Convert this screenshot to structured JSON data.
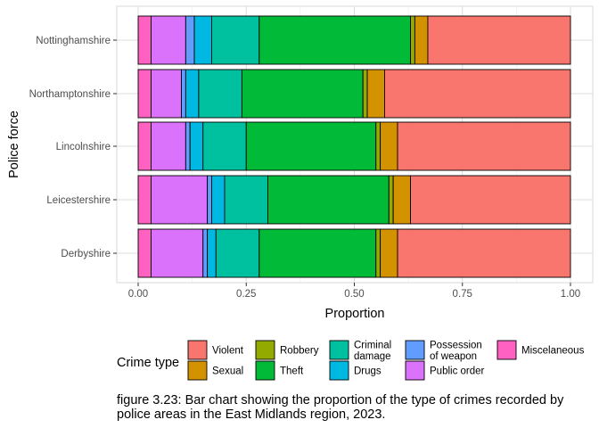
{
  "chart_data": {
    "type": "bar",
    "orientation": "horizontal",
    "stacked": true,
    "xlabel": "Proportion",
    "ylabel": "Police force",
    "xlim": [
      0,
      1
    ],
    "xticks": [
      "0.00",
      "0.25",
      "0.50",
      "0.75",
      "1.00"
    ],
    "grid": true,
    "legend_title": "Crime type",
    "legend_position": "bottom",
    "categories": [
      "Nottinghamshire",
      "Northamptonshire",
      "Lincolnshire",
      "Leicestershire",
      "Derbyshire"
    ],
    "series": [
      {
        "name": "Miscelaneous",
        "color": "#FF61C3",
        "values": [
          0.03,
          0.03,
          0.03,
          0.03,
          0.03
        ]
      },
      {
        "name": "Public order",
        "color": "#DB72FB",
        "values": [
          0.08,
          0.07,
          0.08,
          0.13,
          0.12
        ]
      },
      {
        "name": "Possession of weapon",
        "color": "#619CFF",
        "values": [
          0.02,
          0.01,
          0.01,
          0.01,
          0.01
        ]
      },
      {
        "name": "Drugs",
        "color": "#00B9E3",
        "values": [
          0.04,
          0.03,
          0.03,
          0.03,
          0.02
        ]
      },
      {
        "name": "Criminal damage",
        "color": "#00C19F",
        "values": [
          0.11,
          0.1,
          0.1,
          0.1,
          0.1
        ]
      },
      {
        "name": "Theft",
        "color": "#00BA38",
        "values": [
          0.35,
          0.28,
          0.3,
          0.28,
          0.27
        ]
      },
      {
        "name": "Robbery",
        "color": "#93AA00",
        "values": [
          0.01,
          0.01,
          0.01,
          0.01,
          0.01
        ]
      },
      {
        "name": "Sexual",
        "color": "#D39200",
        "values": [
          0.03,
          0.04,
          0.04,
          0.04,
          0.04
        ]
      },
      {
        "name": "Violent",
        "color": "#F8766D",
        "values": [
          0.33,
          0.43,
          0.4,
          0.37,
          0.4
        ]
      }
    ],
    "legend_items": [
      {
        "label": "Violent",
        "color": "#F8766D"
      },
      {
        "label": "Sexual",
        "color": "#D39200"
      },
      {
        "label": "Robbery",
        "color": "#93AA00"
      },
      {
        "label": "Theft",
        "color": "#00BA38"
      },
      {
        "label": "Criminal damage",
        "label_lines": [
          "Criminal",
          "damage"
        ],
        "color": "#00C19F"
      },
      {
        "label": "Drugs",
        "color": "#00B9E3"
      },
      {
        "label": "Possession of weapon",
        "label_lines": [
          "Possession",
          "of weapon"
        ],
        "color": "#619CFF"
      },
      {
        "label": "Public order",
        "color": "#DB72FB"
      },
      {
        "label": "Miscelaneous",
        "color": "#FF61C3"
      }
    ]
  },
  "caption": "figure 3.23: Bar chart showing the proportion of the type of crimes recorded by police areas in the East Midlands region, 2023."
}
